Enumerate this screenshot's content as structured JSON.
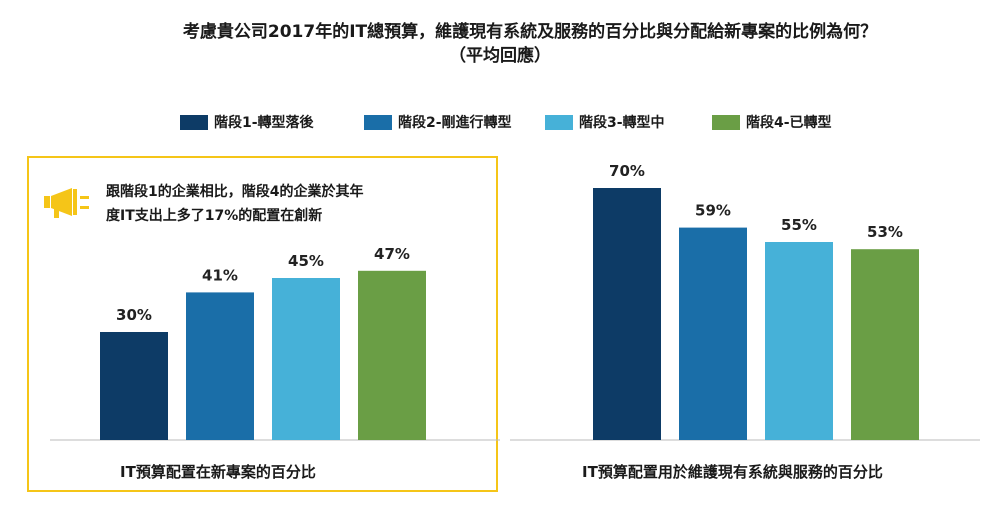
{
  "title": {
    "line1": "考慮貴公司2017年的IT總預算，維護現有系統及服務的百分比與分配給新專案的比例為何？",
    "line2": "（平均回應）"
  },
  "legend": [
    {
      "label": "階段1-轉型落後",
      "color": "#0d3b66"
    },
    {
      "label": "階段2-剛進行轉型",
      "color": "#1a6ea8"
    },
    {
      "label": "階段3-轉型中",
      "color": "#46b1d8"
    },
    {
      "label": "階段4-已轉型",
      "color": "#6a9e45"
    }
  ],
  "callout": {
    "line1": "跟階段1的企業相比，階段4的企業於其年",
    "line2": "度IT支出上多了17%的配置在創新"
  },
  "chart_data": [
    {
      "type": "bar",
      "categories": [
        "階段1-轉型落後",
        "階段2-剛進行轉型",
        "階段3-轉型中",
        "階段4-已轉型"
      ],
      "values": [
        30,
        41,
        45,
        47
      ],
      "value_labels": [
        "30%",
        "41%",
        "45%",
        "47%"
      ],
      "xlabel": "IT預算配置在新專案的百分比",
      "ylim": [
        0,
        80
      ]
    },
    {
      "type": "bar",
      "categories": [
        "階段1-轉型落後",
        "階段2-剛進行轉型",
        "階段3-轉型中",
        "階段4-已轉型"
      ],
      "values": [
        70,
        59,
        55,
        53
      ],
      "value_labels": [
        "70%",
        "59%",
        "55%",
        "53%"
      ],
      "xlabel": "IT預算配置用於維護現有系統與服務的百分比",
      "ylim": [
        0,
        80
      ]
    }
  ]
}
